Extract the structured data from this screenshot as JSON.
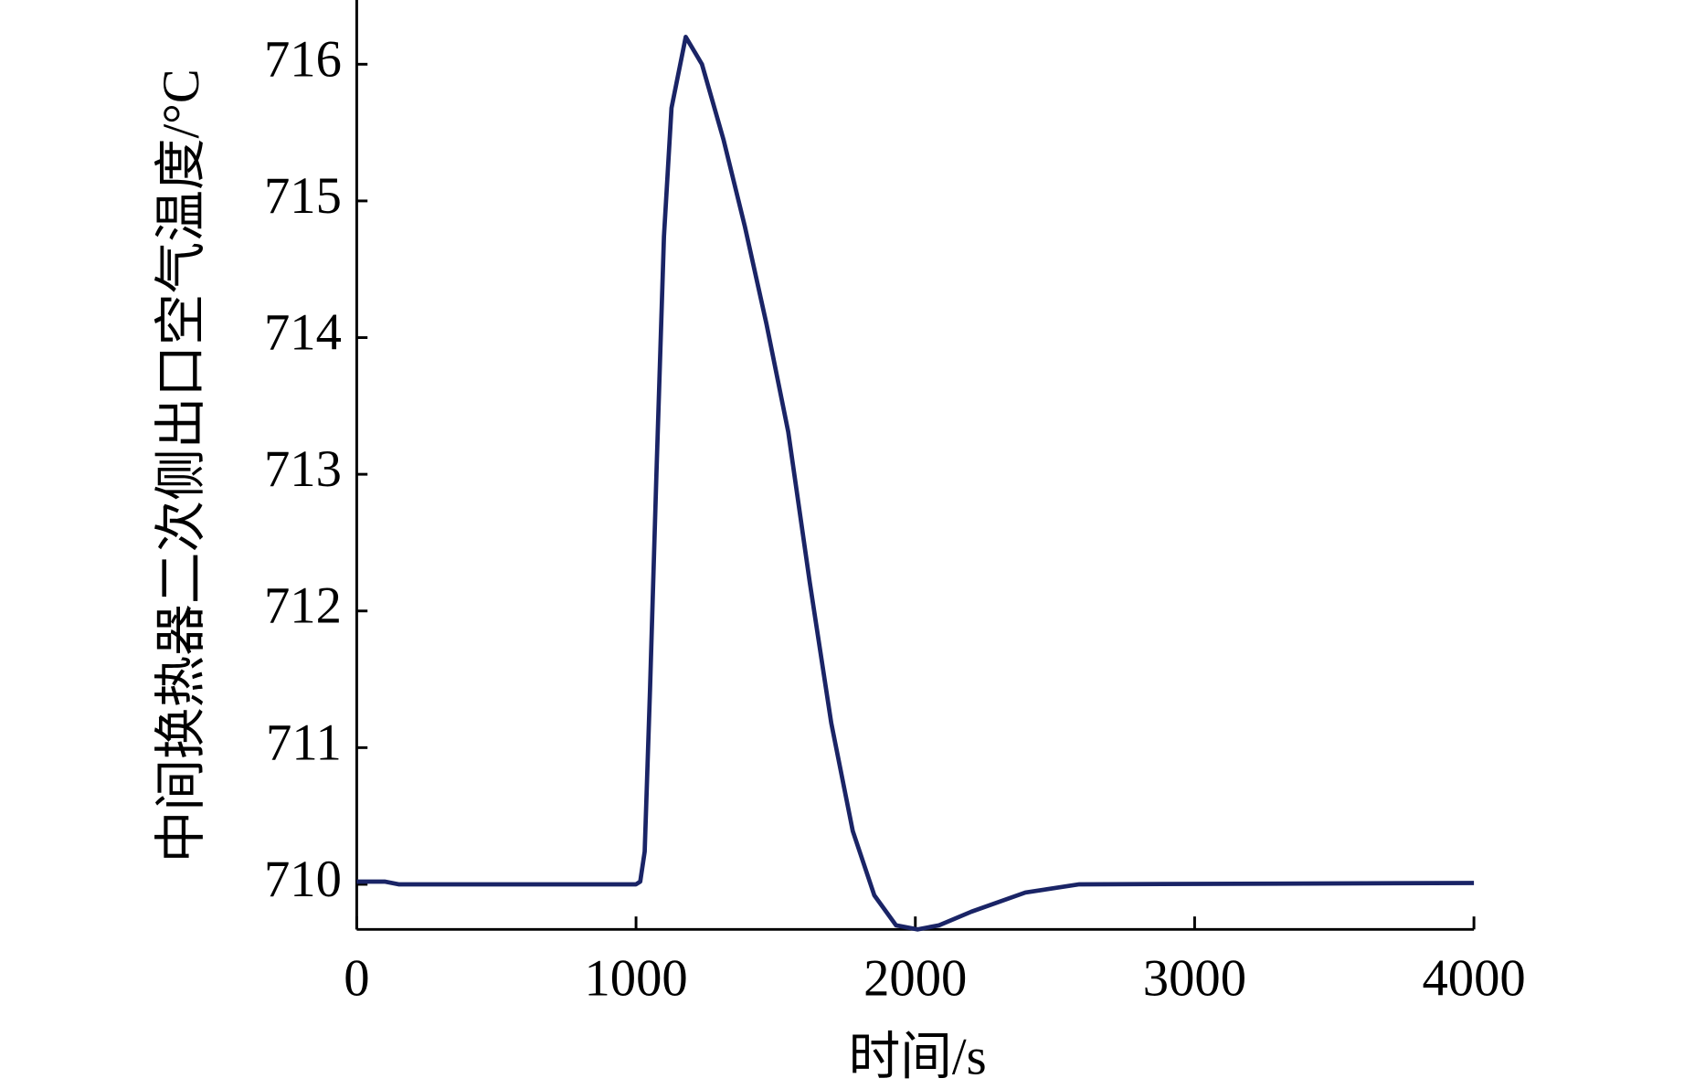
{
  "chart_data": {
    "type": "line",
    "x_label": "时间/s",
    "y_label": "中间换热器二次侧出口空气温度/°C",
    "x": [
      0,
      100,
      150,
      1000,
      1015,
      1031,
      1050,
      1073,
      1100,
      1127,
      1178,
      1236,
      1313,
      1390,
      1467,
      1545,
      1622,
      1699,
      1776,
      1853,
      1931,
      2008,
      2085,
      2201,
      2394,
      2587,
      4000
    ],
    "series": [
      {
        "color": "#1a2466",
        "values": [
          710.02,
          710.02,
          710.0,
          710.0,
          710.02,
          710.24,
          711.42,
          713.0,
          714.74,
          715.68,
          716.2,
          716.0,
          715.45,
          714.81,
          714.1,
          713.31,
          712.21,
          711.18,
          710.39,
          709.92,
          709.7,
          709.67,
          709.7,
          709.8,
          709.94,
          710.0,
          710.01
        ]
      }
    ],
    "xlim": [
      0,
      4000
    ],
    "xticks": [
      0,
      1000,
      2000,
      3000,
      4000
    ],
    "ylim": [
      709.67,
      716.47
    ],
    "yticks": [
      710,
      711,
      712,
      713,
      714,
      715,
      716
    ],
    "grid": false
  }
}
